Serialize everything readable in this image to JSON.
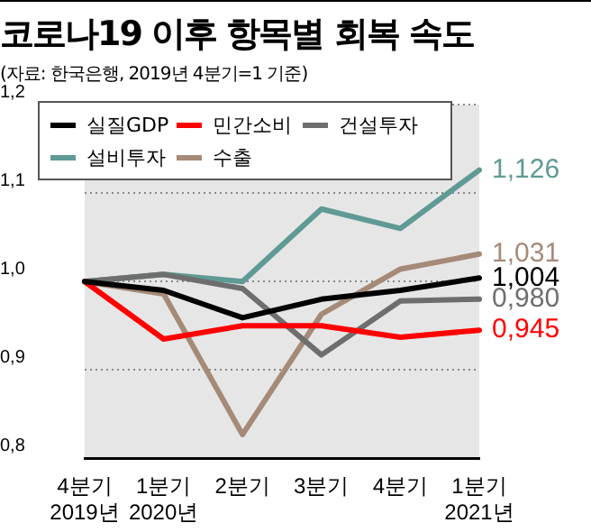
{
  "chart_data": {
    "type": "line",
    "title": "코로나19 이후 항목별 회복 속도",
    "subtitle": "(자료: 한국은행, 2019년 4분기=1 기준)",
    "categories": [
      "4분기\n2019년",
      "1분기\n2020년",
      "2분기",
      "3분기",
      "4분기",
      "1분기\n2021년"
    ],
    "series": [
      {
        "name": "실질GDP",
        "color": "#000000",
        "values": [
          1.0,
          0.99,
          0.959,
          0.98,
          0.99,
          1.004
        ],
        "value_labels": [
          null,
          null,
          null,
          null,
          null,
          "1,004"
        ]
      },
      {
        "name": "민간소비",
        "color": "#ff0000",
        "values": [
          1.0,
          0.935,
          0.95,
          0.95,
          0.937,
          0.945
        ],
        "value_labels": [
          null,
          null,
          null,
          null,
          null,
          "0,945"
        ]
      },
      {
        "name": "건설투자",
        "color": "#6e6e6e",
        "values": [
          1.0,
          1.008,
          0.992,
          0.917,
          0.978,
          0.98
        ],
        "value_labels": [
          null,
          null,
          null,
          null,
          null,
          "0,980"
        ]
      },
      {
        "name": "설비투자",
        "color": "#5f9a94",
        "values": [
          1.0,
          1.008,
          1.0,
          1.082,
          1.06,
          1.126
        ],
        "value_labels": [
          null,
          null,
          null,
          null,
          null,
          "1,126"
        ]
      },
      {
        "name": "수출",
        "color": "#a58a78",
        "values": [
          1.0,
          0.986,
          0.827,
          0.963,
          1.014,
          1.031
        ],
        "value_labels": [
          null,
          null,
          null,
          null,
          null,
          "1,031"
        ]
      }
    ],
    "ylim": [
      0.8,
      1.2
    ],
    "yticks": [
      {
        "value": 0.8,
        "label": "0,8"
      },
      {
        "value": 0.9,
        "label": "0,9"
      },
      {
        "value": 1.0,
        "label": "1,0"
      },
      {
        "value": 1.1,
        "label": "1,1"
      },
      {
        "value": 1.2,
        "label": "1,2"
      }
    ],
    "grid": "y",
    "legend": "top left",
    "marker": "none",
    "line_style": "solid",
    "bands": [
      {
        "axis": "x",
        "from": "4분기\n2019년",
        "to": "1분기\n2021년",
        "label": null,
        "color": "#e6e6e6"
      }
    ]
  }
}
